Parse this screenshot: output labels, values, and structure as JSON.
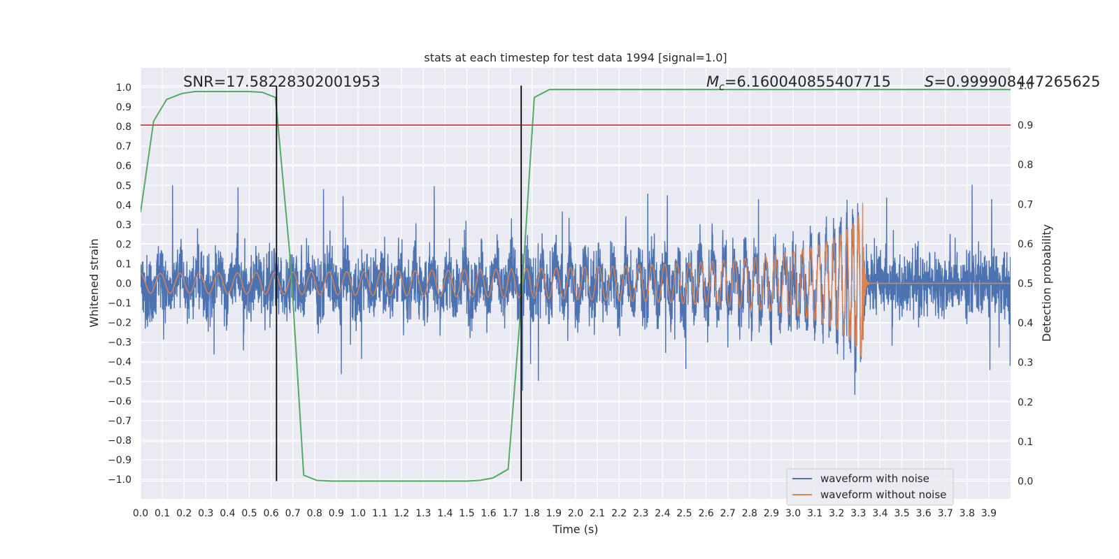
{
  "chart_data": {
    "type": "line",
    "title": "stats at each timestep for test data 1994 [signal=1.0]",
    "xlabel": "Time (s)",
    "ylabel": "Whitened strain",
    "ylabel_right": "Detection probability",
    "xlim": [
      0.0,
      4.0
    ],
    "ylim": [
      -1.1,
      1.1
    ],
    "ylim_right": [
      -0.045,
      1.045
    ],
    "x_ticks": [
      "0.0",
      "0.1",
      "0.2",
      "0.3",
      "0.4",
      "0.5",
      "0.6",
      "0.7",
      "0.8",
      "0.9",
      "1.0",
      "1.1",
      "1.2",
      "1.3",
      "1.4",
      "1.5",
      "1.6",
      "1.7",
      "1.8",
      "1.9",
      "2.0",
      "2.1",
      "2.2",
      "2.3",
      "2.4",
      "2.5",
      "2.6",
      "2.7",
      "2.8",
      "2.9",
      "3.0",
      "3.1",
      "3.2",
      "3.3",
      "3.4",
      "3.5",
      "3.6",
      "3.7",
      "3.8",
      "3.9"
    ],
    "y_ticks": [
      "1.0",
      "0.9",
      "0.8",
      "0.7",
      "0.6",
      "0.5",
      "0.4",
      "0.3",
      "0.2",
      "0.1",
      "0.0",
      "−0.1",
      "−0.2",
      "−0.3",
      "−0.4",
      "−0.5",
      "−0.6",
      "−0.7",
      "−0.8",
      "−0.9",
      "−1.0"
    ],
    "y_ticks_right": [
      "1.0",
      "0.9",
      "0.8",
      "0.7",
      "0.6",
      "0.5",
      "0.4",
      "0.3",
      "0.2",
      "0.1",
      "0.0"
    ],
    "annotations": {
      "snr": "SNR=17.58228302001953",
      "mc_symbol": "M",
      "mc_subscript": "c",
      "mc_value": "=6.160040855407715",
      "s_symbol": "S",
      "s_value": "=0.999908447265625"
    },
    "threshold_line": {
      "y": 0.9,
      "color": "#c44e52"
    },
    "vertical_markers": [
      0.625,
      1.75
    ],
    "series": [
      {
        "name": "waveform with noise",
        "color": "#4c72b0",
        "description": "noisy whitened strain sampled across 0-4 s, amplitude roughly within -0.99 to 0.99"
      },
      {
        "name": "waveform without noise",
        "color": "#dd8452",
        "description": "chirp signal, amplitude ~0.05 rising to ~0.41 at merger near 3.32 s, then ringdown to 0",
        "merger_time": 3.32,
        "peak_amplitude": 0.41
      },
      {
        "name": "detection probability",
        "color": "#55a868",
        "axis": "right",
        "x": [
          0.0,
          0.06,
          0.12,
          0.19,
          0.25,
          0.31,
          0.38,
          0.44,
          0.5,
          0.56,
          0.62,
          0.69,
          0.75,
          0.81,
          0.88,
          0.94,
          1.0,
          1.06,
          1.12,
          1.19,
          1.25,
          1.31,
          1.38,
          1.44,
          1.5,
          1.56,
          1.62,
          1.69,
          1.75,
          1.81,
          1.88,
          1.94,
          2.0,
          2.5,
          3.0,
          3.5,
          4.0
        ],
        "values": [
          0.68,
          0.91,
          0.965,
          0.98,
          0.985,
          0.985,
          0.985,
          0.985,
          0.985,
          0.983,
          0.97,
          0.55,
          0.015,
          0.002,
          0.0,
          0.0,
          0.0,
          0.0,
          0.0,
          0.0,
          0.0,
          0.0,
          0.0,
          0.0,
          0.0,
          0.002,
          0.008,
          0.03,
          0.45,
          0.97,
          0.99,
          0.99,
          0.99,
          0.99,
          0.99,
          0.99,
          0.99
        ]
      }
    ],
    "legend": {
      "position": "lower-right",
      "entries": [
        "waveform with noise",
        "waveform without noise"
      ]
    }
  },
  "colors": {
    "plot_background": "#eaeaf2",
    "grid": "#ffffff",
    "marker_line": "#000000"
  }
}
